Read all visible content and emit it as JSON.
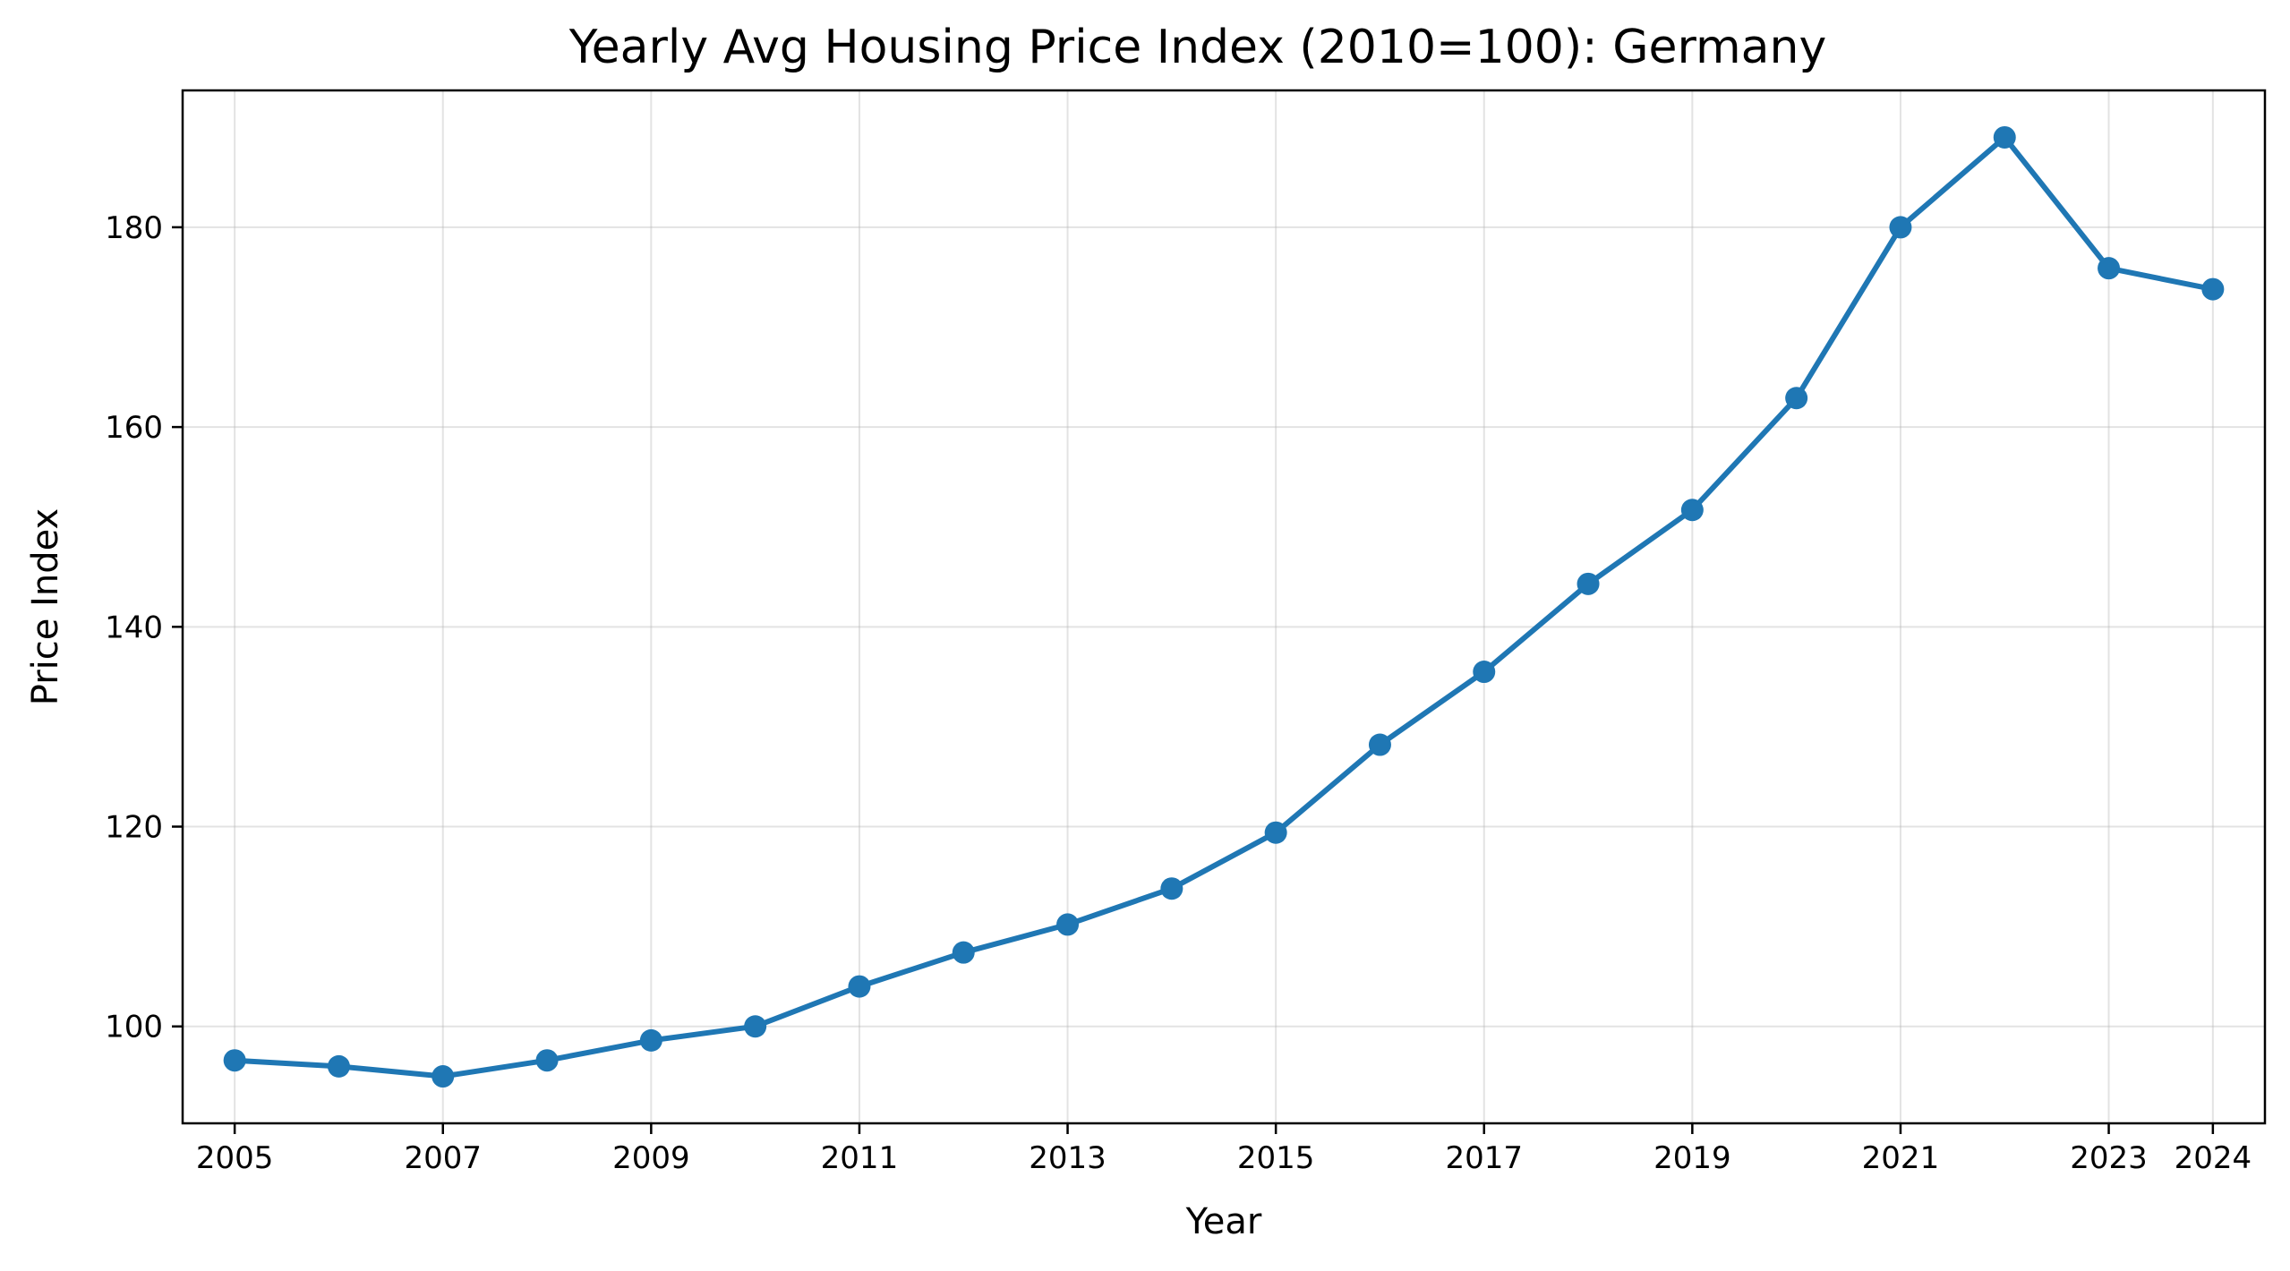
{
  "chart_data": {
    "type": "line",
    "title": "Yearly Avg Housing Price Index (2010=100): Germany",
    "xlabel": "Year",
    "ylabel": "Price Index",
    "x": [
      2005,
      2006,
      2007,
      2008,
      2009,
      2010,
      2011,
      2012,
      2013,
      2014,
      2015,
      2016,
      2017,
      2018,
      2019,
      2020,
      2021,
      2022,
      2023,
      2024
    ],
    "series": [
      {
        "values": [
          96.6,
          96.0,
          95.0,
          96.6,
          98.6,
          100.0,
          104.0,
          107.4,
          110.2,
          113.8,
          119.4,
          128.2,
          135.5,
          144.3,
          151.7,
          162.9,
          180.0,
          189.0,
          175.9,
          173.8
        ],
        "color": "#1f77b4"
      }
    ],
    "xticks": [
      "2005",
      "2007",
      "2009",
      "2011",
      "2013",
      "2015",
      "2017",
      "2019",
      "2021",
      "2023",
      "2024"
    ],
    "yticks": [
      "100",
      "120",
      "140",
      "160",
      "180"
    ],
    "xlim": [
      2004.5,
      2024.5
    ],
    "ylim": [
      90.3,
      193.7
    ],
    "grid": true,
    "marker": "circle"
  }
}
